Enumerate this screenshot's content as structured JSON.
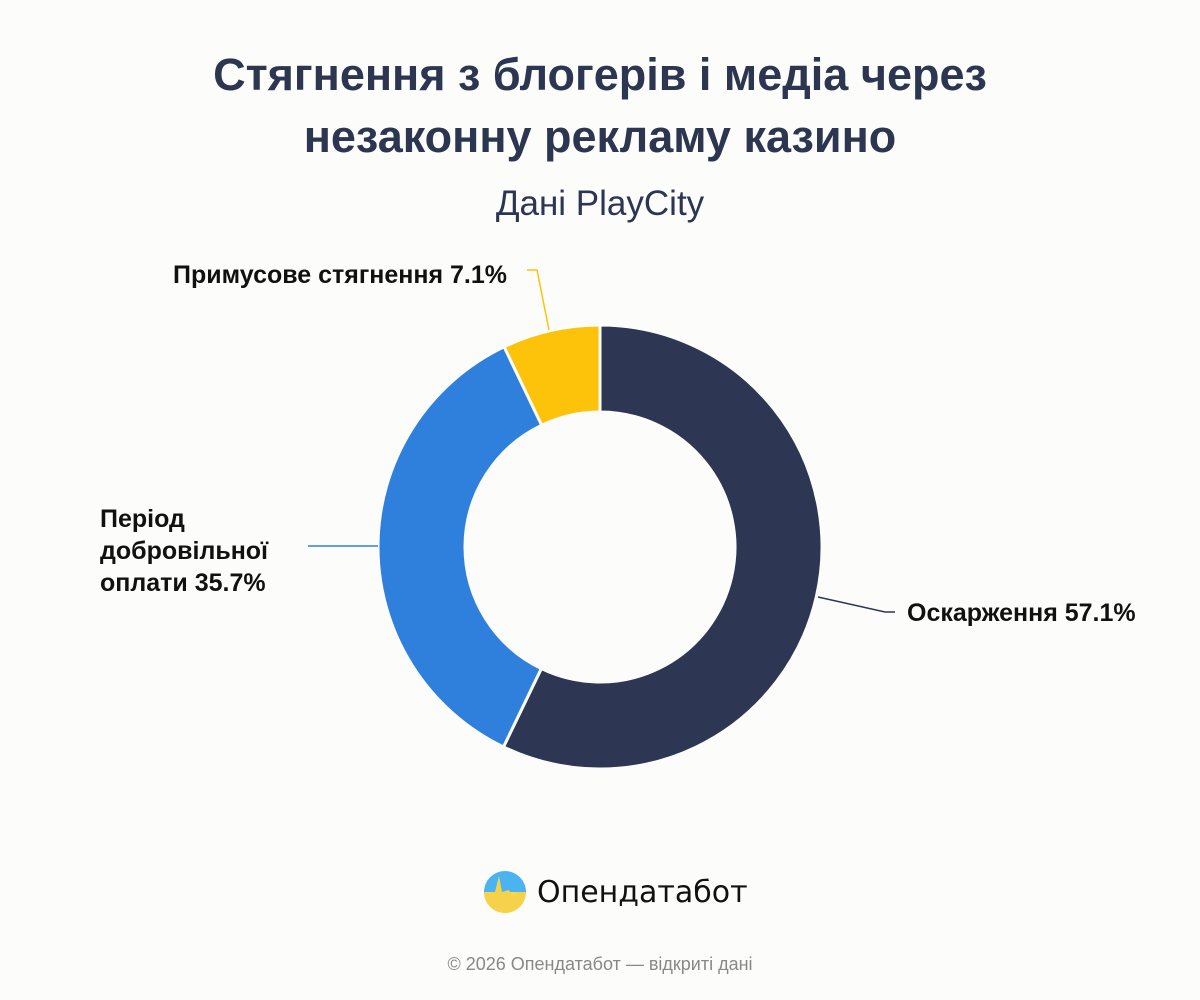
{
  "chart_data": {
    "type": "pie",
    "variant": "donut",
    "title_lines": [
      "Стягнення з блогерів і медіа через",
      "незаконну рекламу казино"
    ],
    "subtitle": "Дані PlayCity",
    "slices": [
      {
        "label": "Оскарження",
        "value": 57.1,
        "label_text": "Оскарження 57.1%",
        "color": "#2d3754"
      },
      {
        "label": "Період добровільної оплати",
        "value": 35.7,
        "label_lines": [
          "Період",
          "добровільної",
          "оплати 35.7%"
        ],
        "color": "#2f80dc"
      },
      {
        "label": "Примусове стягнення",
        "value": 7.1,
        "label_text": "Примусове стягнення 7.1%",
        "color": "#fcc30a"
      }
    ],
    "legend": "none"
  },
  "branding": {
    "logo_text": "Опендатабот",
    "footer": "© 2026 Опендатабот — відкриті дані"
  }
}
